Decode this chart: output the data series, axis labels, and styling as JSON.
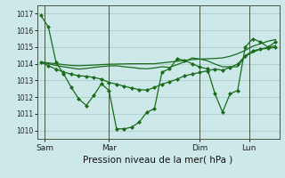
{
  "xlabel": "Pression niveau de la mer( hPa )",
  "bg_color": "#cce8e8",
  "grid_color": "#aacccc",
  "line_color": "#1a6b1a",
  "ylim": [
    1009.5,
    1017.5
  ],
  "yticks": [
    1010,
    1011,
    1012,
    1013,
    1014,
    1015,
    1016,
    1017
  ],
  "x_tick_labels": [
    "Sam",
    "Mar",
    "Dim",
    "Lun"
  ],
  "x_tick_pos": [
    0.5,
    9,
    21,
    27.5
  ],
  "x_vline_pos": [
    0.5,
    9,
    21,
    27.5
  ],
  "n_points": 32,
  "series": [
    [
      1016.9,
      1016.2,
      1014.1,
      1013.4,
      1012.6,
      1011.9,
      1011.5,
      1012.1,
      1012.8,
      1012.4,
      1010.1,
      1010.1,
      1010.2,
      1010.5,
      1011.1,
      1011.3,
      1013.5,
      1013.7,
      1014.3,
      1014.2,
      1014.0,
      1013.8,
      1013.7,
      1012.2,
      1011.1,
      1012.2,
      1012.4,
      1015.0,
      1015.5,
      1015.3,
      1015.0,
      1015.3
    ],
    [
      1014.1,
      1014.05,
      1014.0,
      1013.95,
      1013.9,
      1013.88,
      1013.9,
      1013.92,
      1013.95,
      1013.97,
      1013.98,
      1013.99,
      1014.0,
      1014.0,
      1014.0,
      1014.0,
      1014.05,
      1014.1,
      1014.15,
      1014.2,
      1014.25,
      1014.28,
      1014.3,
      1014.32,
      1014.35,
      1014.45,
      1014.6,
      1014.8,
      1015.05,
      1015.2,
      1015.35,
      1015.45
    ],
    [
      1014.1,
      1014.0,
      1013.9,
      1013.82,
      1013.75,
      1013.68,
      1013.72,
      1013.78,
      1013.83,
      1013.87,
      1013.88,
      1013.82,
      1013.78,
      1013.72,
      1013.7,
      1013.75,
      1013.82,
      1013.78,
      1013.95,
      1014.12,
      1014.35,
      1014.28,
      1014.18,
      1013.98,
      1013.82,
      1013.82,
      1013.82,
      1014.45,
      1014.68,
      1014.88,
      1014.98,
      1015.08
    ],
    [
      1014.1,
      1013.88,
      1013.68,
      1013.5,
      1013.38,
      1013.28,
      1013.25,
      1013.18,
      1013.08,
      1012.88,
      1012.78,
      1012.65,
      1012.55,
      1012.45,
      1012.42,
      1012.58,
      1012.78,
      1012.92,
      1013.08,
      1013.28,
      1013.38,
      1013.48,
      1013.58,
      1013.68,
      1013.62,
      1013.78,
      1013.98,
      1014.48,
      1014.78,
      1014.88,
      1014.92,
      1014.98
    ]
  ],
  "series_styles": [
    {
      "lw": 0.9,
      "marker": "D",
      "ms": 2.0,
      "markevery": 1
    },
    {
      "lw": 0.9,
      "marker": null,
      "ms": 0
    },
    {
      "lw": 0.9,
      "marker": null,
      "ms": 0
    },
    {
      "lw": 0.9,
      "marker": "D",
      "ms": 2.0,
      "markevery": 1
    }
  ]
}
